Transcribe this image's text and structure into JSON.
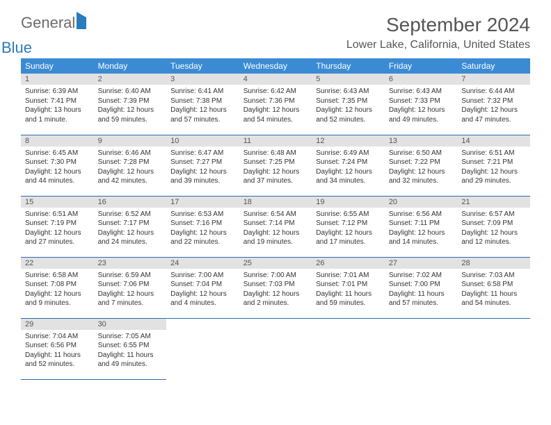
{
  "logo": {
    "part1": "General",
    "part2": "Blue"
  },
  "title": "September 2024",
  "location": "Lower Lake, California, United States",
  "colors": {
    "header_bg": "#3b8bd4",
    "header_text": "#ffffff",
    "daynum_bg": "#e2e2e2",
    "row_border": "#2b6aa8",
    "logo_gray": "#6b6b6b",
    "logo_blue": "#2b7bbf"
  },
  "weekdays": [
    "Sunday",
    "Monday",
    "Tuesday",
    "Wednesday",
    "Thursday",
    "Friday",
    "Saturday"
  ],
  "days": [
    {
      "n": "1",
      "sr": "6:39 AM",
      "ss": "7:41 PM",
      "dl": "13 hours and 1 minute."
    },
    {
      "n": "2",
      "sr": "6:40 AM",
      "ss": "7:39 PM",
      "dl": "12 hours and 59 minutes."
    },
    {
      "n": "3",
      "sr": "6:41 AM",
      "ss": "7:38 PM",
      "dl": "12 hours and 57 minutes."
    },
    {
      "n": "4",
      "sr": "6:42 AM",
      "ss": "7:36 PM",
      "dl": "12 hours and 54 minutes."
    },
    {
      "n": "5",
      "sr": "6:43 AM",
      "ss": "7:35 PM",
      "dl": "12 hours and 52 minutes."
    },
    {
      "n": "6",
      "sr": "6:43 AM",
      "ss": "7:33 PM",
      "dl": "12 hours and 49 minutes."
    },
    {
      "n": "7",
      "sr": "6:44 AM",
      "ss": "7:32 PM",
      "dl": "12 hours and 47 minutes."
    },
    {
      "n": "8",
      "sr": "6:45 AM",
      "ss": "7:30 PM",
      "dl": "12 hours and 44 minutes."
    },
    {
      "n": "9",
      "sr": "6:46 AM",
      "ss": "7:28 PM",
      "dl": "12 hours and 42 minutes."
    },
    {
      "n": "10",
      "sr": "6:47 AM",
      "ss": "7:27 PM",
      "dl": "12 hours and 39 minutes."
    },
    {
      "n": "11",
      "sr": "6:48 AM",
      "ss": "7:25 PM",
      "dl": "12 hours and 37 minutes."
    },
    {
      "n": "12",
      "sr": "6:49 AM",
      "ss": "7:24 PM",
      "dl": "12 hours and 34 minutes."
    },
    {
      "n": "13",
      "sr": "6:50 AM",
      "ss": "7:22 PM",
      "dl": "12 hours and 32 minutes."
    },
    {
      "n": "14",
      "sr": "6:51 AM",
      "ss": "7:21 PM",
      "dl": "12 hours and 29 minutes."
    },
    {
      "n": "15",
      "sr": "6:51 AM",
      "ss": "7:19 PM",
      "dl": "12 hours and 27 minutes."
    },
    {
      "n": "16",
      "sr": "6:52 AM",
      "ss": "7:17 PM",
      "dl": "12 hours and 24 minutes."
    },
    {
      "n": "17",
      "sr": "6:53 AM",
      "ss": "7:16 PM",
      "dl": "12 hours and 22 minutes."
    },
    {
      "n": "18",
      "sr": "6:54 AM",
      "ss": "7:14 PM",
      "dl": "12 hours and 19 minutes."
    },
    {
      "n": "19",
      "sr": "6:55 AM",
      "ss": "7:12 PM",
      "dl": "12 hours and 17 minutes."
    },
    {
      "n": "20",
      "sr": "6:56 AM",
      "ss": "7:11 PM",
      "dl": "12 hours and 14 minutes."
    },
    {
      "n": "21",
      "sr": "6:57 AM",
      "ss": "7:09 PM",
      "dl": "12 hours and 12 minutes."
    },
    {
      "n": "22",
      "sr": "6:58 AM",
      "ss": "7:08 PM",
      "dl": "12 hours and 9 minutes."
    },
    {
      "n": "23",
      "sr": "6:59 AM",
      "ss": "7:06 PM",
      "dl": "12 hours and 7 minutes."
    },
    {
      "n": "24",
      "sr": "7:00 AM",
      "ss": "7:04 PM",
      "dl": "12 hours and 4 minutes."
    },
    {
      "n": "25",
      "sr": "7:00 AM",
      "ss": "7:03 PM",
      "dl": "12 hours and 2 minutes."
    },
    {
      "n": "26",
      "sr": "7:01 AM",
      "ss": "7:01 PM",
      "dl": "11 hours and 59 minutes."
    },
    {
      "n": "27",
      "sr": "7:02 AM",
      "ss": "7:00 PM",
      "dl": "11 hours and 57 minutes."
    },
    {
      "n": "28",
      "sr": "7:03 AM",
      "ss": "6:58 PM",
      "dl": "11 hours and 54 minutes."
    },
    {
      "n": "29",
      "sr": "7:04 AM",
      "ss": "6:56 PM",
      "dl": "11 hours and 52 minutes."
    },
    {
      "n": "30",
      "sr": "7:05 AM",
      "ss": "6:55 PM",
      "dl": "11 hours and 49 minutes."
    }
  ],
  "labels": {
    "sunrise": "Sunrise:",
    "sunset": "Sunset:",
    "daylight": "Daylight:"
  }
}
